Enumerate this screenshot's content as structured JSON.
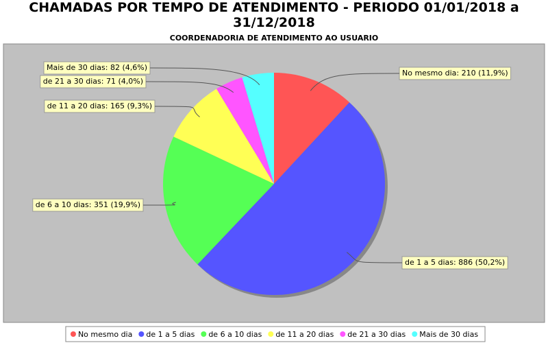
{
  "chart_data": {
    "type": "pie",
    "title": "CHAMADAS POR TEMPO DE ATENDIMENTO - PERIODO 01/01/2018 a 31/12/2018",
    "subtitle": "COORDENADORIA DE ATENDIMENTO AO USUARIO",
    "categories": [
      "No mesmo dia",
      "de 1 a 5 dias",
      "de 6 a 10 dias",
      "de 11 a 20 dias",
      "de 21 a 30 dias",
      "Mais de 30 dias"
    ],
    "values": [
      210,
      886,
      351,
      165,
      71,
      82
    ],
    "value_labels": [
      "No mesmo dia: 210 (11,9%)",
      "de 1 a 5 dias: 886 (50,2%)",
      "de 6 a 10 dias: 351 (19,9%)",
      "de 11 a 20 dias: 165 (9,3%)",
      "de 21 a 30 dias: 71 (4,0%)",
      "Mais de 30 dias: 82 (4,6%)"
    ],
    "colors": [
      "#ff5555",
      "#5555ff",
      "#55ff55",
      "#ffff55",
      "#ff55ff",
      "#55ffff"
    ],
    "legend": "bottom"
  }
}
